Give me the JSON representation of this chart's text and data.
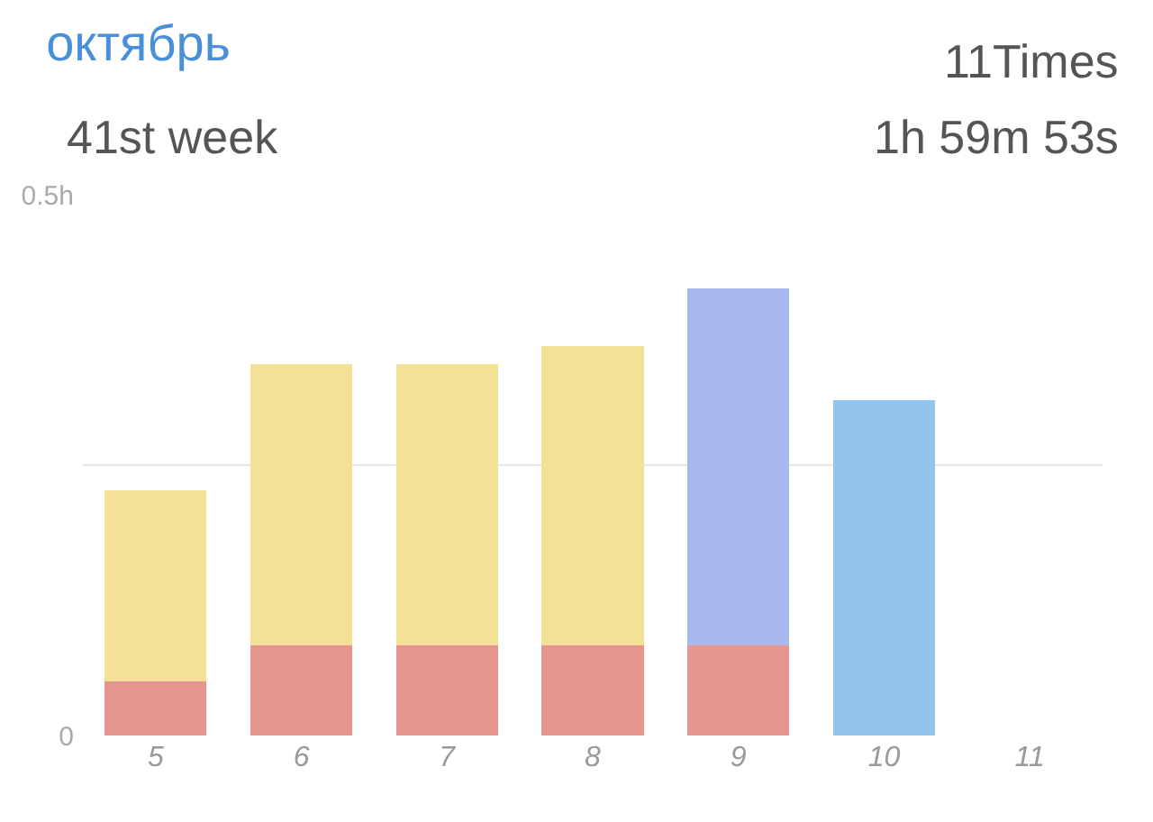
{
  "chart_data": {
    "type": "bar",
    "title": "октябрь",
    "subtitle": "41st week",
    "annotations": [
      "11Times",
      "1h 59m 53s"
    ],
    "categories": [
      "5",
      "6",
      "7",
      "8",
      "9",
      "10",
      "11"
    ],
    "stacked": true,
    "series": [
      {
        "color": "#e4968f",
        "values": [
          0.05,
          0.083,
          0.083,
          0.083,
          0.083,
          null,
          null
        ]
      },
      {
        "colors": [
          "#f3e198",
          "#f3e198",
          "#f3e198",
          "#f3e198",
          "#a9b9ee",
          "#92c4ec",
          "#f3e198"
        ],
        "values": [
          0.177,
          0.26,
          0.26,
          0.277,
          0.33,
          0.31,
          null
        ]
      }
    ],
    "ylim": [
      0,
      0.5
    ],
    "yticks": [
      {
        "value": 0,
        "label": "0"
      },
      {
        "value": 0.25,
        "label": null
      },
      {
        "value": 0.5,
        "label": "0.5h"
      }
    ],
    "grid": "y"
  }
}
